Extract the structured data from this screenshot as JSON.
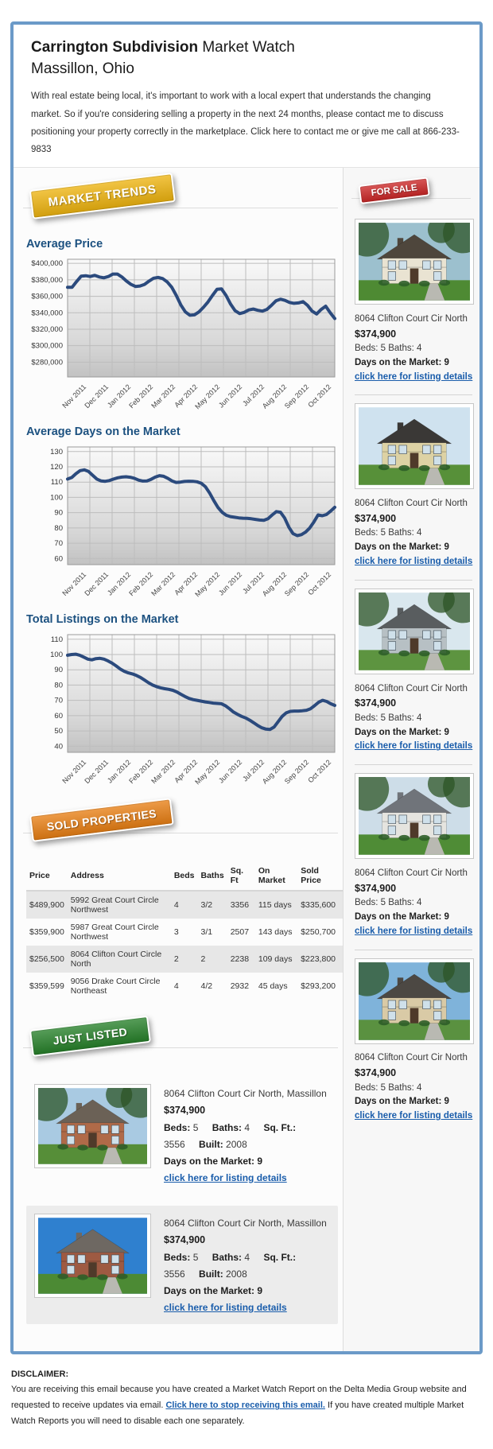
{
  "header": {
    "title_bold": "Carrington Subdivision",
    "title_rest": " Market Watch",
    "subtitle": "Massillon, Ohio",
    "intro_before": "With real estate being local, it's important to work with a local expert that understands the changing market. So if you're considering selling a property in the next 24 months, please contact me to discuss positioning your property correctly in the marketplace. ",
    "intro_link": "Click here to contact me",
    "intro_after": " or give me call at 866-233-9833"
  },
  "ribbons": {
    "market_trends": "MARKET TRENDS",
    "for_sale": "FOR SALE",
    "sold_properties": "SOLD PROPERTIES",
    "just_listed": "JUST LISTED"
  },
  "colors": {
    "frame_border": "#6b9ac8",
    "heading": "#1c5180",
    "link": "#1a5dab",
    "chart_line": "#2b4a7d",
    "ribbon_gold": "#eeb410",
    "ribbon_red": "#cc2727",
    "ribbon_orange": "#e87f14",
    "ribbon_green": "#27812a"
  },
  "chart_data": [
    {
      "type": "line",
      "title": "Average Price",
      "x_labels": [
        "Nov 2011",
        "Dec 2011",
        "Jan 2012",
        "Feb 2012",
        "Mar 2012",
        "Apr 2012",
        "May 2012",
        "Jun 2012",
        "Jul 2012",
        "Aug 2012",
        "Sep 2012",
        "Oct 2012"
      ],
      "y_ticks": [
        400000,
        380000,
        360000,
        340000,
        320000,
        300000,
        280000
      ],
      "y_tick_labels": [
        "$400,000",
        "$380,000",
        "$360,000",
        "$340,000",
        "$320,000",
        "$300,000",
        "$280,000"
      ],
      "ylim": [
        262000,
        405000
      ],
      "grid": true,
      "values": [
        371000,
        371000,
        378000,
        384500,
        385000,
        384000,
        385500,
        383500,
        382500,
        384000,
        387000,
        387000,
        383500,
        378500,
        374500,
        372000,
        372500,
        374500,
        378500,
        382000,
        383000,
        381500,
        377500,
        371000,
        361000,
        349500,
        341000,
        337000,
        337500,
        341000,
        346500,
        353000,
        361000,
        368500,
        369000,
        361000,
        350500,
        342500,
        339000,
        340500,
        343500,
        344500,
        343000,
        342000,
        344000,
        349000,
        354500,
        356500,
        355000,
        352500,
        351500,
        352000,
        353500,
        349000,
        342000,
        338500,
        344000,
        348000,
        340000,
        333000
      ]
    },
    {
      "type": "line",
      "title": "Average Days on the Market",
      "x_labels": [
        "Nov 2011",
        "Dec 2011",
        "Jan 2012",
        "Feb 2012",
        "Mar 2012",
        "Apr 2012",
        "May 2012",
        "Jun 2012",
        "Jul 2012",
        "Aug 2012",
        "Sep 2012",
        "Oct 2012"
      ],
      "y_ticks": [
        130,
        120,
        110,
        100,
        90,
        80,
        70,
        60
      ],
      "y_tick_labels": [
        "130",
        "120",
        "110",
        "100",
        "90",
        "80",
        "70",
        "60"
      ],
      "ylim": [
        56,
        133
      ],
      "grid": true,
      "values": [
        112,
        113,
        115.5,
        117.5,
        118,
        117,
        114.5,
        112,
        110.8,
        110.5,
        111,
        112,
        112.8,
        113.3,
        113.5,
        113.2,
        112.5,
        111.3,
        110.7,
        110.8,
        111.8,
        113.3,
        114.2,
        113.8,
        112.5,
        110.8,
        109.8,
        110,
        110.4,
        110.6,
        110.5,
        110.2,
        109.3,
        107,
        103,
        98,
        93.5,
        90.3,
        88.3,
        87.4,
        87,
        86.6,
        86.4,
        86.3,
        86,
        85.6,
        85.2,
        85,
        86,
        88.5,
        90.7,
        90.3,
        86.5,
        80.5,
        76.3,
        75,
        75.6,
        77.3,
        80,
        84,
        88.5,
        88,
        88.8,
        91,
        93.5
      ]
    },
    {
      "type": "line",
      "title": "Total Listings on the Market",
      "x_labels": [
        "Nov 2011",
        "Dec 2011",
        "Jan 2012",
        "Feb 2012",
        "Mar 2012",
        "Apr 2012",
        "May 2012",
        "Jun 2012",
        "Jul 2012",
        "Aug 2012",
        "Sep 2012",
        "Oct 2012"
      ],
      "y_ticks": [
        110,
        100,
        90,
        80,
        70,
        60,
        50,
        40
      ],
      "y_tick_labels": [
        "110",
        "100",
        "90",
        "80",
        "70",
        "60",
        "50",
        "40"
      ],
      "ylim": [
        36,
        113
      ],
      "grid": true,
      "values": [
        99.5,
        100,
        100.2,
        99.5,
        98.3,
        97,
        96.5,
        97.3,
        97.5,
        97,
        95.8,
        94.3,
        92.5,
        90.5,
        89,
        88,
        87.3,
        86.3,
        85,
        83.3,
        81.5,
        80,
        79,
        78.2,
        77.6,
        77.2,
        76.6,
        75.5,
        74,
        72.5,
        71.3,
        70.5,
        70,
        69.5,
        69,
        68.6,
        68.2,
        68,
        67.8,
        66.5,
        64.5,
        62.3,
        60.8,
        59.5,
        58.5,
        57,
        55.3,
        53.5,
        52,
        51.2,
        51,
        52.5,
        56,
        59.5,
        61.8,
        62.8,
        63,
        63,
        63.2,
        63.5,
        64.5,
        66.5,
        68.7,
        70,
        69.3,
        67.8,
        66.7
      ]
    }
  ],
  "sold": {
    "headers": [
      "Price",
      "Address",
      "Beds",
      "Baths",
      "Sq. Ft",
      "On Market",
      "Sold Price"
    ],
    "rows": [
      {
        "price": "$489,900",
        "address": "5992 Great Court Circle Northwest",
        "beds": "4",
        "baths": "3/2",
        "sqft": "3356",
        "on_market": "115 days",
        "sold_price": "$335,600"
      },
      {
        "price": "$359,900",
        "address": "5987 Great Court Circle Northwest",
        "beds": "3",
        "baths": "3/1",
        "sqft": "2507",
        "on_market": "143 days",
        "sold_price": "$250,700"
      },
      {
        "price": "$256,500",
        "address": "8064 Clifton Court Circle North",
        "beds": "2",
        "baths": "2",
        "sqft": "2238",
        "on_market": "109 days",
        "sold_price": "$223,800"
      },
      {
        "price": "$359,599",
        "address": "9056 Drake Court Circle Northeast",
        "beds": "4",
        "baths": "4/2",
        "sqft": "2932",
        "on_market": "45 days",
        "sold_price": "$293,200"
      }
    ]
  },
  "for_sale": {
    "items": [
      {
        "address": "8064 Clifton Court Cir North",
        "price": "$374,900",
        "beds_baths": "Beds: 5 Baths: 4",
        "days": "Days on the Market: 9",
        "link": "click here for listing details",
        "photo": {
          "sky": "#9cc0ce",
          "wall": "#e9e3d2",
          "roof": "#4e463c",
          "lawn": "#4e8a33",
          "trees": true
        }
      },
      {
        "address": "8064 Clifton Court Cir North",
        "price": "$374,900",
        "beds_baths": "Beds: 5 Baths: 4",
        "days": "Days on the Market: 9",
        "link": "click here for listing details",
        "photo": {
          "sky": "#cfe2ef",
          "wall": "#ddd2a4",
          "roof": "#3a3836",
          "lawn": "#579039",
          "trees": false
        }
      },
      {
        "address": "8064 Clifton Court Cir North",
        "price": "$374,900",
        "beds_baths": "Beds: 5 Baths: 4",
        "days": "Days on the Market: 9",
        "link": "click here for listing details",
        "photo": {
          "sky": "#d9e7ee",
          "wall": "#b7c0c4",
          "roof": "#595d5f",
          "lawn": "#5d9440",
          "trees": true
        }
      },
      {
        "address": "8064 Clifton Court Cir North",
        "price": "$374,900",
        "beds_baths": "Beds: 5 Baths: 4",
        "days": "Days on the Market: 9",
        "link": "click here for listing details",
        "photo": {
          "sky": "#cddde8",
          "wall": "#e5e4df",
          "roof": "#70747a",
          "lawn": "#4f8c36",
          "trees": true
        }
      },
      {
        "address": "8064 Clifton Court Cir North",
        "price": "$374,900",
        "beds_baths": "Beds: 5 Baths: 4",
        "days": "Days on the Market: 9",
        "link": "click here for listing details",
        "photo": {
          "sky": "#7fb3da",
          "wall": "#d9caa6",
          "roof": "#4c4843",
          "lawn": "#5a9140",
          "trees": true
        }
      }
    ]
  },
  "just_listed": {
    "items": [
      {
        "address": "8064 Clifton Court Cir North, Massillon",
        "price": "$374,900",
        "specs": [
          {
            "label": "Beds:",
            "value": "5"
          },
          {
            "label": "Baths:",
            "value": "4"
          },
          {
            "label": "Sq. Ft.:",
            "value": "3556"
          },
          {
            "label": "Built:",
            "value": "2008"
          }
        ],
        "days": "Days on the Market: 9",
        "link": "click here for listing details",
        "photo": {
          "sky": "#a9cae2",
          "wall": "#b06a48",
          "roof": "#6b6156",
          "lawn": "#568e38",
          "trees": true
        }
      },
      {
        "address": "8064 Clifton Court Cir North, Massillon",
        "price": "$374,900",
        "specs": [
          {
            "label": "Beds:",
            "value": "5"
          },
          {
            "label": "Baths:",
            "value": "4"
          },
          {
            "label": "Sq. Ft.:",
            "value": "3556"
          },
          {
            "label": "Built:",
            "value": "2008"
          }
        ],
        "days": "Days on the Market: 9",
        "link": "click here for listing details",
        "photo": {
          "sky": "#2f80cf",
          "wall": "#9e5a42",
          "roof": "#6e6862",
          "lawn": "#4c8a34",
          "trees": false
        }
      }
    ]
  },
  "footer": {
    "heading": "DISCLAIMER:",
    "text_before": "You are receiving this email because you have created a Market Watch Report on the Delta Media Group website and requested to receive updates via email. ",
    "link": "Click here to stop receiving this email.",
    "text_after": " If you have created multiple Market Watch Reports you will need to disable each one separately."
  }
}
